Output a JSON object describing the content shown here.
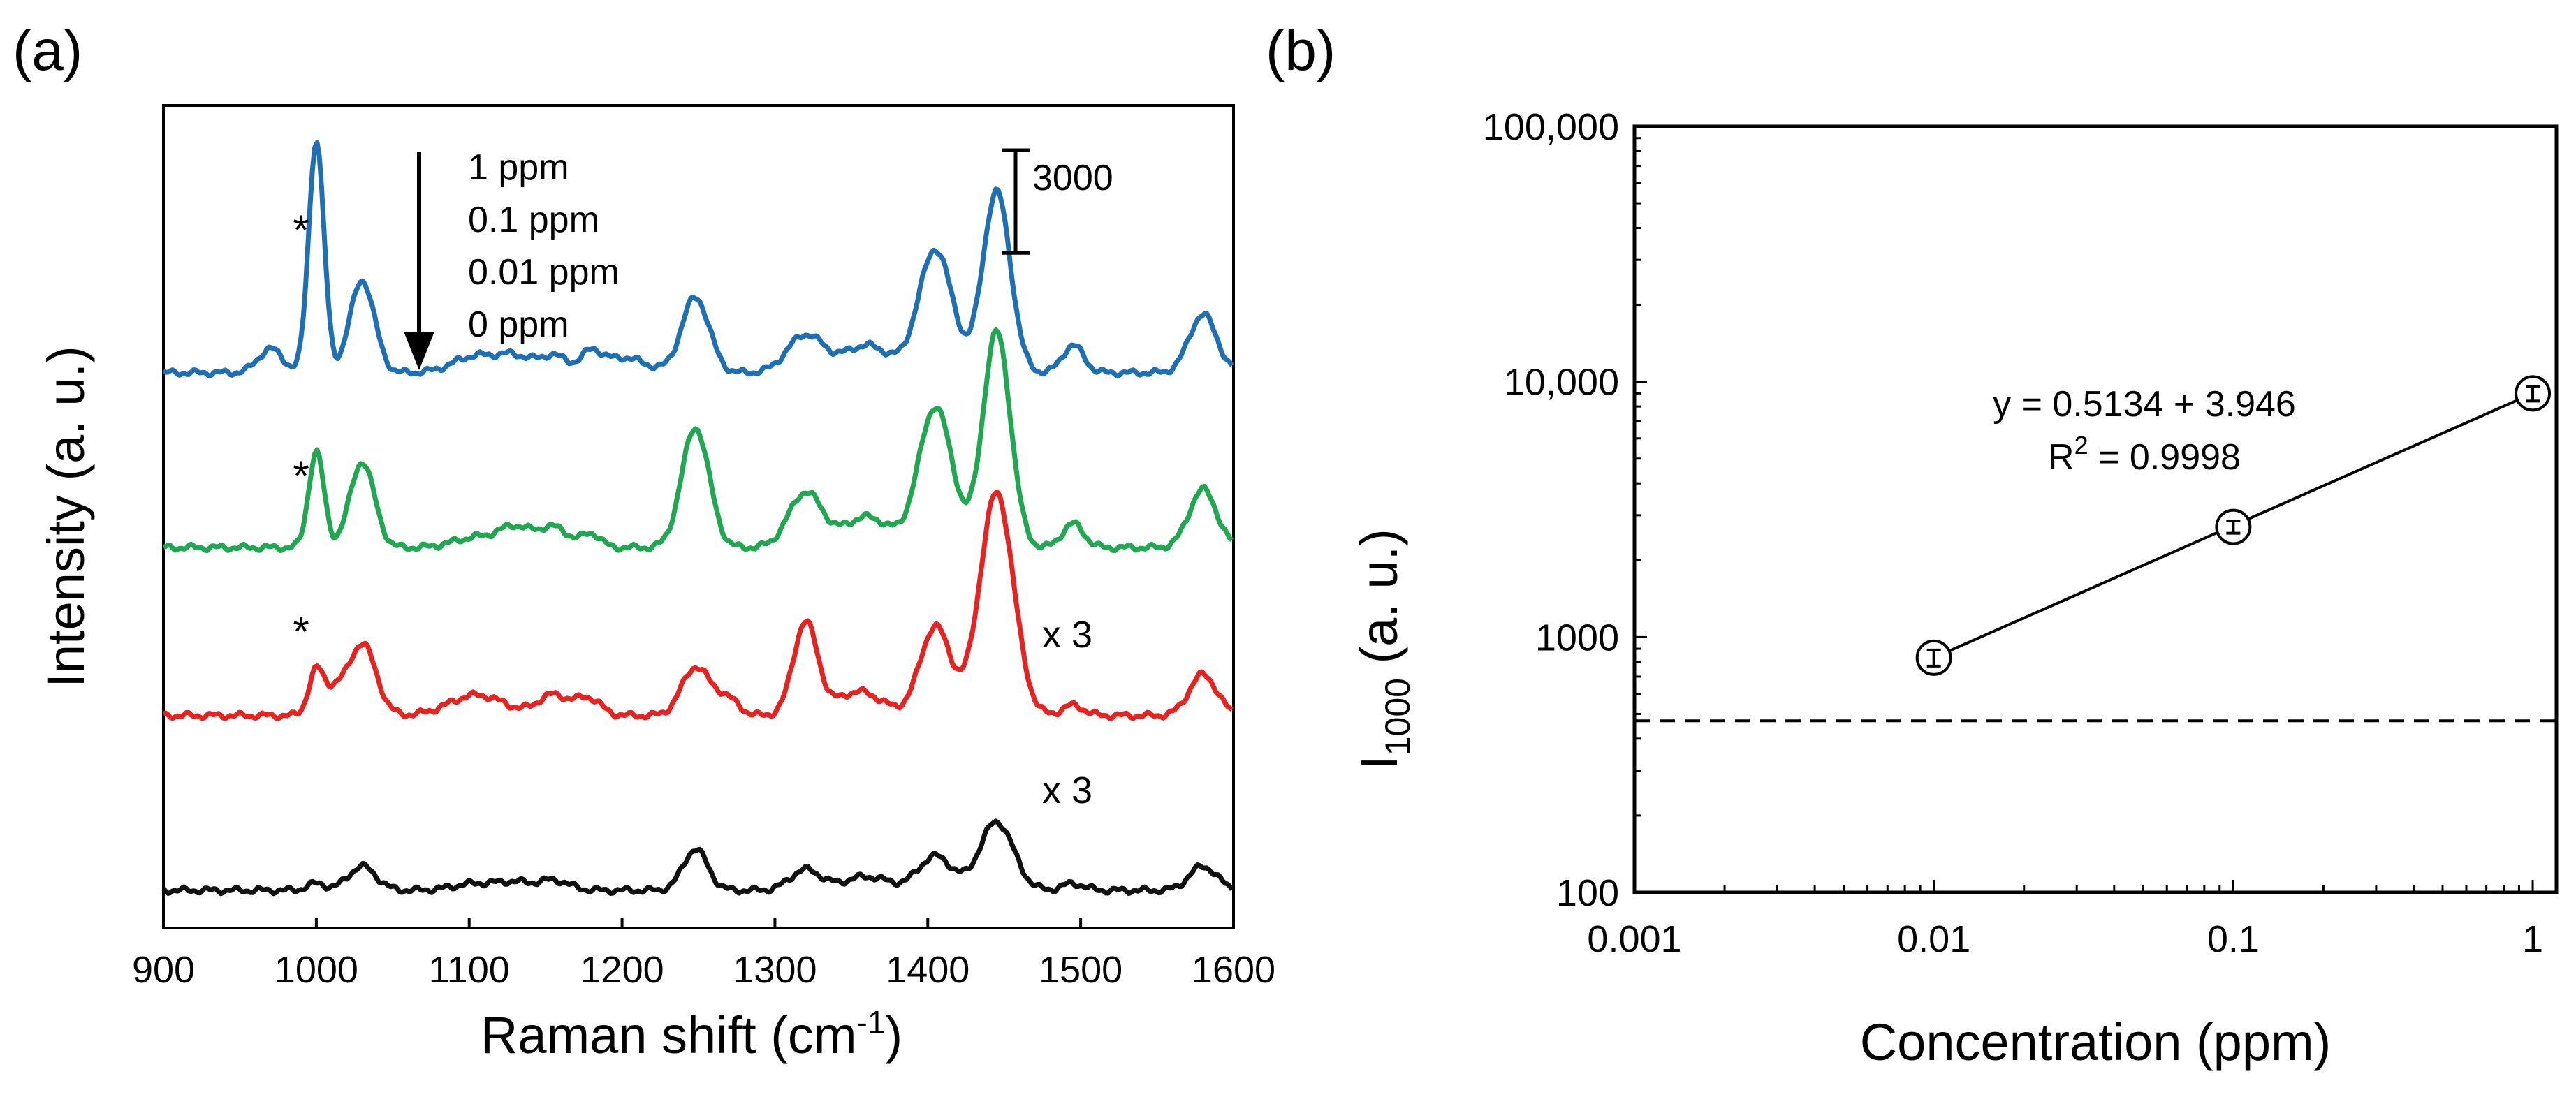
{
  "chart_data": [
    {
      "panel": "(a)",
      "type": "line",
      "xlabel": "Raman shift (cm",
      "xlabel_sup": "-1",
      "xlabel_end": ")",
      "ylabel": "Intensity (a. u.)",
      "xlim": [
        900,
        1600
      ],
      "xticks": [
        "900",
        "1000",
        "1100",
        "1200",
        "1300",
        "1400",
        "1500",
        "1600"
      ],
      "xtick_values": [
        900,
        1000,
        1100,
        1200,
        1300,
        1400,
        1500,
        1600
      ],
      "ylim": [
        0,
        24000
      ],
      "scale_bar_label": "3000",
      "scale_bar_value": 3000,
      "legend_order": [
        "1 ppm",
        "0.1 ppm",
        "0.01 ppm",
        "0 ppm"
      ],
      "peak_marker": "*",
      "series": [
        {
          "name": "1 ppm",
          "color": "#1f6fb5",
          "offset": 16200,
          "scale": 1,
          "multiplier": "",
          "peaks": [
            [
              970,
              700,
              8
            ],
            [
              1000,
              6800,
              5
            ],
            [
              1030,
              2700,
              8
            ],
            [
              1105,
              500,
              15
            ],
            [
              1130,
              400,
              10
            ],
            [
              1155,
              500,
              10
            ],
            [
              1180,
              500,
              6
            ],
            [
              1200,
              450,
              15
            ],
            [
              1248,
              2200,
              9
            ],
            [
              1320,
              1100,
              12
            ],
            [
              1360,
              800,
              15
            ],
            [
              1405,
              3600,
              11
            ],
            [
              1445,
              5300,
              9
            ],
            [
              1495,
              800,
              7
            ],
            [
              1580,
              1700,
              9
            ]
          ]
        },
        {
          "name": "0.1 ppm",
          "color": "#1fa84f",
          "offset": 11100,
          "scale": 1,
          "multiplier": "",
          "peaks": [
            [
              1000,
              2800,
              5
            ],
            [
              1030,
              2500,
              8
            ],
            [
              1105,
              300,
              15
            ],
            [
              1130,
              550,
              10
            ],
            [
              1155,
              600,
              10
            ],
            [
              1180,
              400,
              6
            ],
            [
              1248,
              3500,
              9
            ],
            [
              1320,
              1600,
              11
            ],
            [
              1360,
              900,
              15
            ],
            [
              1405,
              4100,
              11
            ],
            [
              1445,
              6300,
              9
            ],
            [
              1495,
              700,
              7
            ],
            [
              1580,
              1700,
              9
            ]
          ]
        },
        {
          "name": "0.01 ppm",
          "color": "#e8231f",
          "offset": 6200,
          "scale": 1,
          "multiplier": "x 3",
          "peaks": [
            [
              1000,
              1300,
              5
            ],
            [
              1012,
              600,
              6
            ],
            [
              1030,
              2100,
              9
            ],
            [
              1105,
              600,
              18
            ],
            [
              1155,
              600,
              10
            ],
            [
              1178,
              500,
              8
            ],
            [
              1248,
              1400,
              9
            ],
            [
              1268,
              500,
              8
            ],
            [
              1320,
              2700,
              8
            ],
            [
              1355,
              700,
              15
            ],
            [
              1405,
              2600,
              10
            ],
            [
              1445,
              6500,
              11
            ],
            [
              1495,
              300,
              7
            ],
            [
              1580,
              1200,
              9
            ]
          ]
        },
        {
          "name": "0 ppm",
          "color": "#111111",
          "offset": 1100,
          "scale": 1,
          "multiplier": "x 3",
          "peaks": [
            [
              1000,
              200,
              6
            ],
            [
              1030,
              700,
              9
            ],
            [
              1105,
              200,
              15
            ],
            [
              1130,
              200,
              10
            ],
            [
              1155,
              300,
              10
            ],
            [
              1248,
              1200,
              8
            ],
            [
              1320,
              600,
              10
            ],
            [
              1360,
              400,
              15
            ],
            [
              1405,
              1000,
              11
            ],
            [
              1445,
              2000,
              11
            ],
            [
              1495,
              200,
              7
            ],
            [
              1580,
              700,
              9
            ]
          ]
        }
      ]
    },
    {
      "panel": "(b)",
      "type": "scatter",
      "xscale": "log",
      "yscale": "log",
      "xlabel": "Concentration (ppm)",
      "ylabel_main": "I",
      "ylabel_sub": "1000",
      "ylabel_end": " (a. u.)",
      "xlim": [
        0.001,
        1.2
      ],
      "ylim": [
        100,
        100000
      ],
      "xticks": [
        "0.001",
        "0.01",
        "0.1",
        "1"
      ],
      "xtick_values": [
        0.001,
        0.01,
        0.1,
        1
      ],
      "yticks": [
        "100",
        "1000",
        "10,000",
        "100,000"
      ],
      "ytick_values": [
        100,
        1000,
        10000,
        100000
      ],
      "points": [
        {
          "x": 0.01,
          "y": 830,
          "err": 60
        },
        {
          "x": 0.1,
          "y": 2700,
          "err": 150
        },
        {
          "x": 1,
          "y": 9000,
          "err": 600
        }
      ],
      "fit_line": {
        "x": [
          0.01,
          1
        ],
        "y": [
          830,
          9000
        ]
      },
      "threshold_y": 470,
      "equation": "y = 0.5134 + 3.946",
      "r2_label": "R",
      "r2_sup": "2",
      "r2_value": " = 0.9998"
    }
  ]
}
